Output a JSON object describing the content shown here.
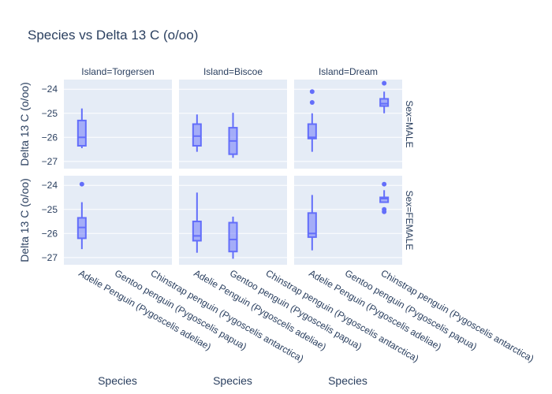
{
  "chart_data": {
    "type": "box",
    "title": "Species vs Delta 13 C (o/oo)",
    "xlabel": "Species",
    "ylabel": "Delta 13 C (o/oo)",
    "ylim": [
      -27.3,
      -23.6
    ],
    "yticks": [
      -24,
      -25,
      -26,
      -27
    ],
    "ytick_labels": [
      "−24",
      "−25",
      "−26",
      "−27"
    ],
    "categories": [
      "Adelie Penguin (Pygoscelis adeliae)",
      "Gentoo penguin (Pygoscelis papua)",
      "Chinstrap penguin (Pygoscelis antarctica)"
    ],
    "columns": [
      "Island=Torgersen",
      "Island=Biscoe",
      "Island=Dream"
    ],
    "rows": [
      "Sex=MALE",
      "Sex=FEMALE"
    ],
    "color": "#636efa",
    "panel_background": "#e5ecf6",
    "grid": true,
    "panels": [
      {
        "row": 0,
        "col": 0,
        "boxes": [
          {
            "cat": 0,
            "min": -26.45,
            "q1": -26.35,
            "median": -26.0,
            "q3": -25.3,
            "max": -24.8,
            "outliers": []
          }
        ]
      },
      {
        "row": 0,
        "col": 1,
        "boxes": [
          {
            "cat": 0,
            "min": -26.6,
            "q1": -26.35,
            "median": -25.95,
            "q3": -25.45,
            "max": -25.05,
            "outliers": []
          },
          {
            "cat": 1,
            "min": -26.85,
            "q1": -26.7,
            "median": -26.15,
            "q3": -25.6,
            "max": -24.98,
            "outliers": []
          }
        ]
      },
      {
        "row": 0,
        "col": 2,
        "boxes": [
          {
            "cat": 0,
            "min": -26.6,
            "q1": -26.05,
            "median": -26.0,
            "q3": -25.45,
            "max": -25.0,
            "outliers": [
              -24.1,
              -24.55
            ]
          },
          {
            "cat": 2,
            "min": -25.0,
            "q1": -24.7,
            "median": -24.6,
            "q3": -24.4,
            "max": -24.1,
            "outliers": [
              -23.75
            ]
          }
        ]
      },
      {
        "row": 1,
        "col": 0,
        "boxes": [
          {
            "cat": 0,
            "min": -26.65,
            "q1": -26.2,
            "median": -25.75,
            "q3": -25.35,
            "max": -24.7,
            "outliers": [
              -23.95
            ]
          }
        ]
      },
      {
        "row": 1,
        "col": 1,
        "boxes": [
          {
            "cat": 0,
            "min": -26.8,
            "q1": -26.3,
            "median": -26.1,
            "q3": -25.5,
            "max": -24.3,
            "outliers": []
          },
          {
            "cat": 1,
            "min": -27.05,
            "q1": -26.75,
            "median": -26.25,
            "q3": -25.55,
            "max": -25.3,
            "outliers": []
          }
        ]
      },
      {
        "row": 1,
        "col": 2,
        "boxes": [
          {
            "cat": 0,
            "min": -26.7,
            "q1": -26.15,
            "median": -26.0,
            "q3": -25.15,
            "max": -24.4,
            "outliers": []
          },
          {
            "cat": 2,
            "min": -24.7,
            "q1": -24.7,
            "median": -24.55,
            "q3": -24.5,
            "max": -24.2,
            "outliers": [
              -23.95,
              -25.0,
              -25.1
            ]
          }
        ]
      }
    ]
  }
}
